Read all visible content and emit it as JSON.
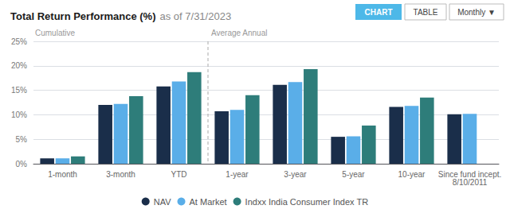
{
  "chart_data": {
    "type": "bar",
    "title": "Total Return Performance (%)",
    "subtitle": "as of 7/31/2023",
    "categories": [
      "1-month",
      "3-month",
      "YTD",
      "1-year",
      "3-year",
      "5-year",
      "10-year",
      "Since fund incept.\n8/10/2011"
    ],
    "series": [
      {
        "name": "NAV",
        "color": "#1a2e4a",
        "values": [
          1.1,
          12.0,
          15.8,
          10.7,
          16.1,
          5.5,
          11.6,
          10.1
        ]
      },
      {
        "name": "At Market",
        "color": "#5aaee8",
        "values": [
          1.1,
          12.2,
          16.8,
          11.0,
          16.7,
          5.6,
          11.8,
          10.2
        ]
      },
      {
        "name": "Indxx India Consumer Index TR",
        "color": "#2e7d7a",
        "values": [
          1.5,
          13.8,
          18.7,
          14.0,
          19.3,
          7.8,
          13.5,
          null
        ]
      }
    ],
    "ylim": [
      0,
      25
    ],
    "yticks": [
      {
        "value": 0,
        "label": "0%"
      },
      {
        "value": 5,
        "label": "5%"
      },
      {
        "value": 10,
        "label": "10%"
      },
      {
        "value": 15,
        "label": "15%"
      },
      {
        "value": 20,
        "label": "20%"
      },
      {
        "value": 25,
        "label": "25%"
      }
    ],
    "grid": true,
    "legend": "bottom",
    "annotations": [
      "Cumulative",
      "Average Annual",
      "CHART",
      "TABLE",
      "Monthly ▼"
    ]
  }
}
